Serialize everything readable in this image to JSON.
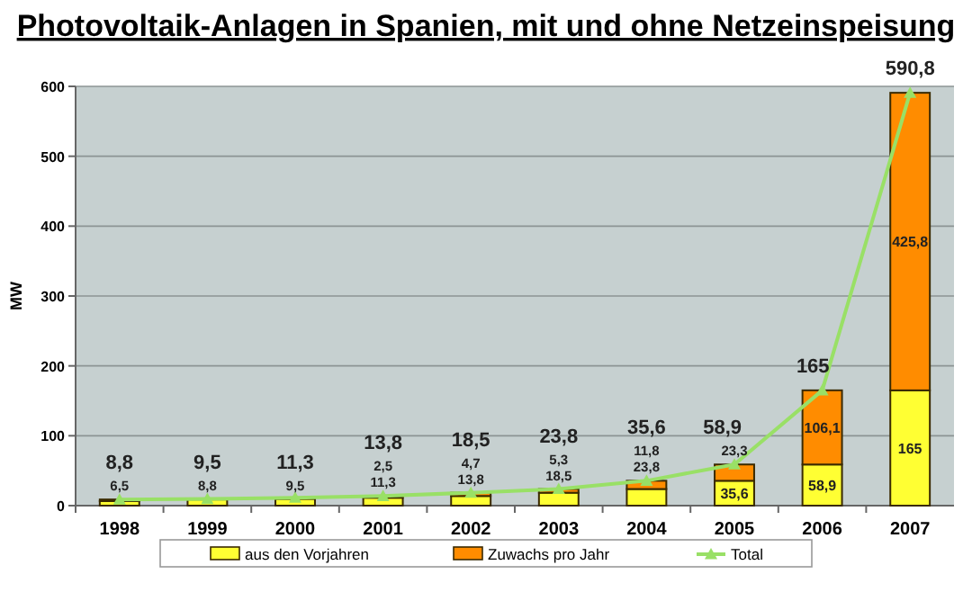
{
  "chart_data": {
    "type": "bar",
    "title": "Photovoltaik-Anlagen in Spanien, mit und ohne Netzeinspeisung",
    "ylabel": "MW",
    "categories": [
      "1998",
      "1999",
      "2000",
      "2001",
      "2002",
      "2003",
      "2004",
      "2005",
      "2006",
      "2007"
    ],
    "stacked": true,
    "ylim": [
      0,
      600
    ],
    "yticks": [
      0,
      100,
      200,
      300,
      400,
      500,
      600
    ],
    "grid": "y",
    "legend": "bottom",
    "series": [
      {
        "name": "aus den Vorjahren",
        "color": "#ffff33",
        "values": [
          6.5,
          8.8,
          9.5,
          11.3,
          13.8,
          18.5,
          23.8,
          35.6,
          58.9,
          165
        ],
        "value_labels": [
          "6,5",
          "8,8",
          "9,5",
          "11,3",
          "13,8",
          "18,5",
          "23,8",
          "35,6",
          "58,9",
          "165"
        ]
      },
      {
        "name": "Zuwachs pro Jahr",
        "color": "#ff8c00",
        "values": [
          2.3,
          null,
          null,
          2.5,
          4.7,
          5.3,
          11.8,
          23.3,
          106.1,
          425.8
        ],
        "value_labels": [
          null,
          null,
          null,
          "2,5",
          "4,7",
          "5,3",
          "11,8",
          "23,3",
          "106,1",
          "425,8"
        ]
      },
      {
        "name": "Total",
        "type": "line",
        "color": "#99e066",
        "marker": "triangle",
        "values": [
          8.8,
          9.5,
          11.3,
          13.8,
          18.5,
          23.8,
          35.6,
          58.9,
          165,
          590.8
        ],
        "value_labels": [
          "8,8",
          "9,5",
          "11,3",
          "13,8",
          "18,5",
          "23,8",
          "35,6",
          "58,9",
          "165",
          "590,8"
        ]
      }
    ]
  }
}
